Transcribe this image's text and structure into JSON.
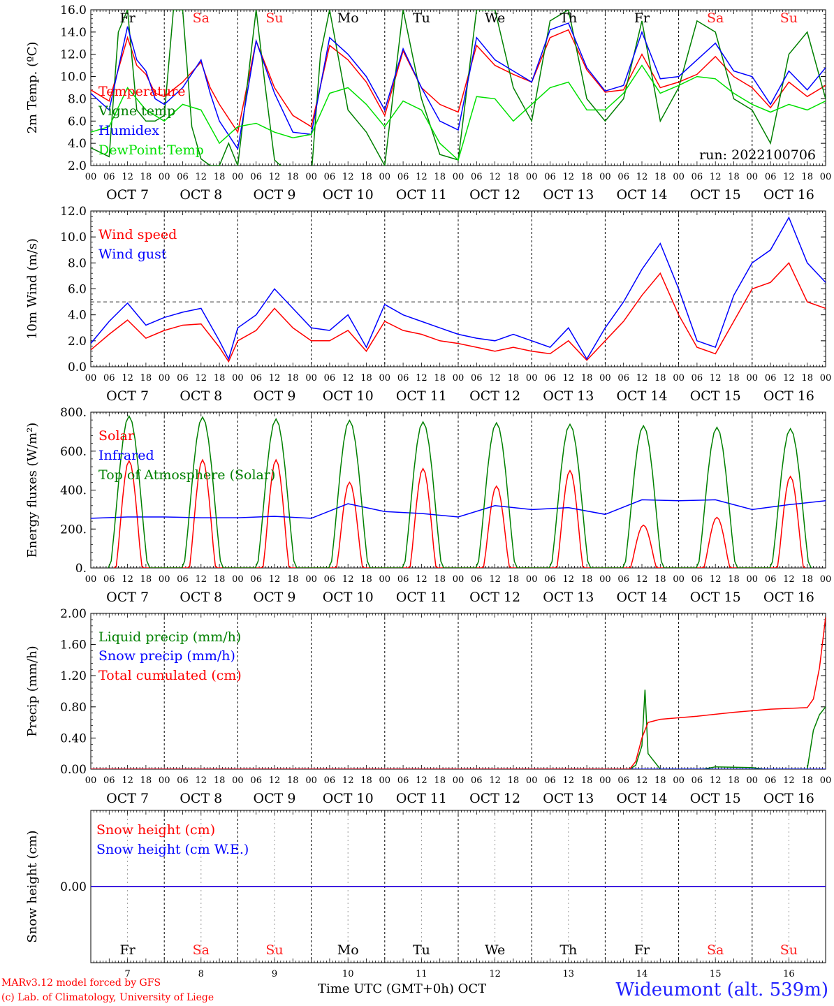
{
  "run_label": "run: 2022100706",
  "footer": {
    "credit_line1": "MARv3.12 model forced by GFS",
    "credit_line2": "(c) Lab. of Climatology, University of Liege",
    "xlabel": "Time UTC (GMT+0h) OCT",
    "station": "Wideumont (alt. 539m)"
  },
  "days": {
    "dates": [
      "OCT  7",
      "OCT  8",
      "OCT  9",
      "OCT 10",
      "OCT 11",
      "OCT 12",
      "OCT 13",
      "OCT 14",
      "OCT 15",
      "OCT 16"
    ],
    "short_days": [
      "7",
      "8",
      "9",
      "10",
      "11",
      "12",
      "13",
      "14",
      "15",
      "16"
    ],
    "weekdays": [
      "Fr",
      "Sa",
      "Su",
      "Mo",
      "Tu",
      "We",
      "Th",
      "Fr",
      "Sa",
      "Su"
    ],
    "weekday_colors": [
      "#000000",
      "#ff2020",
      "#ff2020",
      "#000000",
      "#000000",
      "#000000",
      "#000000",
      "#000000",
      "#ff2020",
      "#ff2020"
    ],
    "hour_ticks": [
      "00",
      "06",
      "12",
      "18"
    ],
    "end_tick": "00"
  },
  "chart_data": [
    {
      "type": "line",
      "ylabel": "2m Temp. (ºC)",
      "ylim": [
        2.0,
        16.0
      ],
      "yticks": [
        "2.0",
        "4.0",
        "6.0",
        "8.0",
        "10.0",
        "12.0",
        "14.0",
        "16.0"
      ],
      "x_unit": "hours since 2022-10-07 00 UTC",
      "series": [
        {
          "name": "Temperature",
          "color": "#ff0000",
          "x": [
            0,
            6,
            12,
            15,
            18,
            21,
            24,
            30,
            36,
            39,
            42,
            48,
            54,
            60,
            66,
            72,
            78,
            84,
            90,
            96,
            102,
            108,
            114,
            120,
            126,
            132,
            138,
            144,
            150,
            156,
            162,
            168,
            174,
            180,
            186,
            192,
            198,
            204,
            210,
            216,
            222,
            228,
            234,
            240
          ],
          "values": [
            8.8,
            7.8,
            13.5,
            11.0,
            10.2,
            8.5,
            8.2,
            9.5,
            11.3,
            9.0,
            7.5,
            5.0,
            13.2,
            9.0,
            6.5,
            5.5,
            12.8,
            11.5,
            9.5,
            6.5,
            12.3,
            9.0,
            7.5,
            6.8,
            12.8,
            11.0,
            10.2,
            9.5,
            13.5,
            14.2,
            10.6,
            8.6,
            8.8,
            12.0,
            9.0,
            9.5,
            10.2,
            11.8,
            10.0,
            9.0,
            7.2,
            9.5,
            8.2,
            9.2
          ]
        },
        {
          "name": "Vigne temp",
          "color": "#008000",
          "x": [
            0,
            6,
            9,
            12,
            15,
            18,
            21,
            24,
            27,
            30,
            33,
            36,
            39,
            42,
            45,
            48,
            54,
            57,
            60,
            66,
            72,
            75,
            78,
            84,
            90,
            96,
            102,
            108,
            114,
            120,
            126,
            132,
            138,
            144,
            150,
            156,
            162,
            168,
            174,
            180,
            186,
            192,
            198,
            204,
            210,
            216,
            222,
            228,
            234,
            240
          ],
          "values": [
            3.6,
            2.8,
            14.0,
            16.0,
            7.0,
            6.0,
            6.0,
            6.5,
            16.0,
            16.0,
            5.5,
            2.6,
            2.0,
            2.0,
            4.0,
            2.0,
            16.0,
            9.0,
            2.5,
            1.0,
            1.0,
            12.0,
            16.0,
            7.0,
            5.0,
            2.0,
            16.0,
            8.0,
            3.0,
            2.5,
            16.0,
            16.0,
            9.0,
            6.0,
            15.0,
            16.0,
            8.0,
            6.0,
            8.0,
            15.0,
            6.0,
            9.0,
            15.0,
            14.0,
            8.0,
            7.0,
            4.0,
            12.0,
            14.0,
            8.0
          ]
        },
        {
          "name": "Humidex",
          "color": "#0000ff",
          "x": [
            0,
            6,
            12,
            15,
            18,
            21,
            24,
            30,
            36,
            39,
            42,
            48,
            54,
            60,
            66,
            72,
            78,
            84,
            90,
            96,
            102,
            108,
            114,
            120,
            126,
            132,
            138,
            144,
            150,
            156,
            162,
            168,
            174,
            180,
            186,
            192,
            198,
            204,
            210,
            216,
            222,
            228,
            234,
            240
          ],
          "values": [
            8.5,
            7.0,
            14.5,
            11.5,
            10.5,
            8.0,
            7.5,
            9.0,
            11.5,
            8.5,
            6.0,
            3.5,
            13.2,
            8.5,
            5.0,
            4.8,
            13.5,
            12.0,
            10.0,
            7.0,
            12.5,
            9.0,
            6.0,
            5.2,
            13.5,
            11.5,
            10.5,
            9.5,
            14.2,
            14.8,
            10.8,
            8.7,
            9.2,
            14.0,
            9.8,
            10.0,
            11.5,
            13.0,
            10.5,
            10.0,
            7.5,
            10.5,
            8.8,
            10.8
          ]
        },
        {
          "name": "DewPoint Temp",
          "color": "#00e000",
          "x": [
            0,
            6,
            12,
            18,
            24,
            30,
            36,
            42,
            48,
            54,
            60,
            66,
            72,
            78,
            84,
            90,
            96,
            102,
            108,
            114,
            120,
            126,
            132,
            138,
            144,
            150,
            156,
            162,
            168,
            174,
            180,
            186,
            192,
            198,
            204,
            210,
            216,
            222,
            228,
            234,
            240
          ],
          "values": [
            5.0,
            5.5,
            9.0,
            7.0,
            6.0,
            7.5,
            7.0,
            4.0,
            5.5,
            5.8,
            5.0,
            4.5,
            4.8,
            8.5,
            9.0,
            7.5,
            5.5,
            7.8,
            7.0,
            4.0,
            2.5,
            8.2,
            8.0,
            6.0,
            7.5,
            9.0,
            9.5,
            7.0,
            7.0,
            8.5,
            11.0,
            8.5,
            9.2,
            10.0,
            9.8,
            8.5,
            7.5,
            6.8,
            7.5,
            7.0,
            7.8
          ]
        }
      ]
    },
    {
      "type": "line",
      "ylabel": "10m Wind (m/s)",
      "ylim": [
        0.0,
        12.0
      ],
      "yticks": [
        "0.0",
        "2.0",
        "4.0",
        "6.0",
        "8.0",
        "10.0",
        "12.0"
      ],
      "reference_line": 5.0,
      "x_unit": "hours since 2022-10-07 00 UTC",
      "series": [
        {
          "name": "Wind speed",
          "color": "#ff0000",
          "x": [
            0,
            6,
            12,
            18,
            24,
            30,
            36,
            42,
            45,
            48,
            54,
            60,
            66,
            72,
            78,
            84,
            90,
            96,
            102,
            108,
            114,
            120,
            126,
            132,
            138,
            144,
            150,
            156,
            162,
            168,
            174,
            180,
            186,
            192,
            198,
            204,
            210,
            216,
            222,
            228,
            234,
            240
          ],
          "values": [
            1.3,
            2.5,
            3.6,
            2.2,
            2.8,
            3.2,
            3.3,
            1.5,
            0.4,
            2.0,
            2.8,
            4.5,
            3.0,
            2.0,
            2.0,
            2.8,
            1.2,
            3.5,
            2.8,
            2.5,
            2.0,
            1.8,
            1.5,
            1.2,
            1.5,
            1.2,
            1.0,
            2.0,
            0.5,
            2.0,
            3.5,
            5.5,
            7.2,
            4.0,
            1.5,
            1.0,
            3.5,
            6.0,
            6.5,
            8.0,
            5.0,
            4.5
          ]
        },
        {
          "name": "Wind gust",
          "color": "#0000ff",
          "x": [
            0,
            6,
            12,
            18,
            24,
            30,
            36,
            42,
            45,
            48,
            54,
            60,
            66,
            72,
            78,
            84,
            90,
            96,
            102,
            108,
            114,
            120,
            126,
            132,
            138,
            144,
            150,
            156,
            162,
            168,
            174,
            180,
            186,
            192,
            198,
            204,
            210,
            216,
            222,
            228,
            234,
            240
          ],
          "values": [
            1.8,
            3.5,
            4.9,
            3.2,
            3.8,
            4.2,
            4.5,
            2.0,
            0.6,
            3.0,
            4.0,
            6.0,
            4.5,
            3.0,
            2.8,
            4.0,
            1.5,
            4.8,
            4.0,
            3.5,
            3.0,
            2.5,
            2.2,
            2.0,
            2.5,
            2.0,
            1.5,
            3.0,
            0.6,
            3.0,
            5.0,
            7.5,
            9.5,
            6.0,
            2.0,
            1.5,
            5.5,
            8.0,
            9.0,
            11.5,
            8.0,
            6.5
          ]
        }
      ]
    },
    {
      "type": "line",
      "ylabel": "Energy fluxes (W/m²)",
      "ylim": [
        0,
        800
      ],
      "yticks": [
        "0.",
        "200.",
        "400.",
        "600.",
        "800."
      ],
      "x_unit": "hours since 2022-10-07 00 UTC",
      "solar_noon_hour": 12.5,
      "toa_peak": [
        780,
        775,
        765,
        758,
        750,
        745,
        738,
        730,
        722,
        715
      ],
      "solar_peak": [
        550,
        555,
        555,
        440,
        510,
        420,
        500,
        220,
        260,
        470
      ],
      "series": [
        {
          "name": "Solar",
          "color": "#ff0000",
          "x": [],
          "values": []
        },
        {
          "name": "Infrared",
          "color": "#0000ff",
          "x": [
            0,
            12,
            24,
            36,
            48,
            60,
            72,
            84,
            96,
            108,
            120,
            132,
            144,
            156,
            168,
            180,
            192,
            204,
            216,
            228,
            240
          ],
          "values": [
            255,
            262,
            262,
            258,
            258,
            265,
            255,
            330,
            290,
            280,
            262,
            320,
            300,
            310,
            275,
            350,
            345,
            350,
            300,
            325,
            345
          ]
        },
        {
          "name": "Top of Atmosphere (Solar)",
          "color": "#008000",
          "x": [],
          "values": []
        }
      ]
    },
    {
      "type": "line",
      "ylabel": "Precip (mm/h)",
      "ylim": [
        0.0,
        2.0
      ],
      "yticks": [
        "0.00",
        "0.40",
        "0.80",
        "1.20",
        "1.60",
        "2.00"
      ],
      "x_unit": "hours since 2022-10-07 00 UTC",
      "series": [
        {
          "name": "Liquid precip (mm/h)",
          "color": "#008000",
          "x": [
            0,
            176,
            178,
            180,
            181,
            182,
            184,
            186,
            200,
            204,
            216,
            220,
            228,
            230,
            234,
            236,
            238,
            240
          ],
          "values": [
            0,
            0,
            0.05,
            0.3,
            1.02,
            0.2,
            0.1,
            0,
            0,
            0.03,
            0.02,
            0,
            0,
            0,
            0,
            0.5,
            0.7,
            0.8
          ]
        },
        {
          "name": "Snow precip (mm/h)",
          "color": "#0000ff",
          "x": [
            0,
            240
          ],
          "values": [
            0,
            0
          ]
        },
        {
          "name": "Total cumulated (cm)",
          "color": "#ff0000",
          "x": [
            0,
            176,
            178,
            180,
            182,
            186,
            198,
            210,
            222,
            234,
            236,
            238,
            240
          ],
          "values": [
            0,
            0,
            0.1,
            0.4,
            0.6,
            0.64,
            0.68,
            0.73,
            0.77,
            0.79,
            0.9,
            1.3,
            1.95
          ]
        }
      ]
    },
    {
      "type": "line",
      "ylabel": "Snow height (cm)",
      "ylim": [
        -1.0,
        1.0
      ],
      "yticks": [
        "0.00"
      ],
      "x_unit": "hours since 2022-10-07 00 UTC",
      "series": [
        {
          "name": "Snow height (cm)",
          "color": "#ff0000",
          "x": [
            0,
            240
          ],
          "values": [
            0,
            0
          ]
        },
        {
          "name": "Snow height (cm W.E.)",
          "color": "#0000ff",
          "x": [
            0,
            240
          ],
          "values": [
            0,
            0
          ]
        }
      ]
    }
  ]
}
